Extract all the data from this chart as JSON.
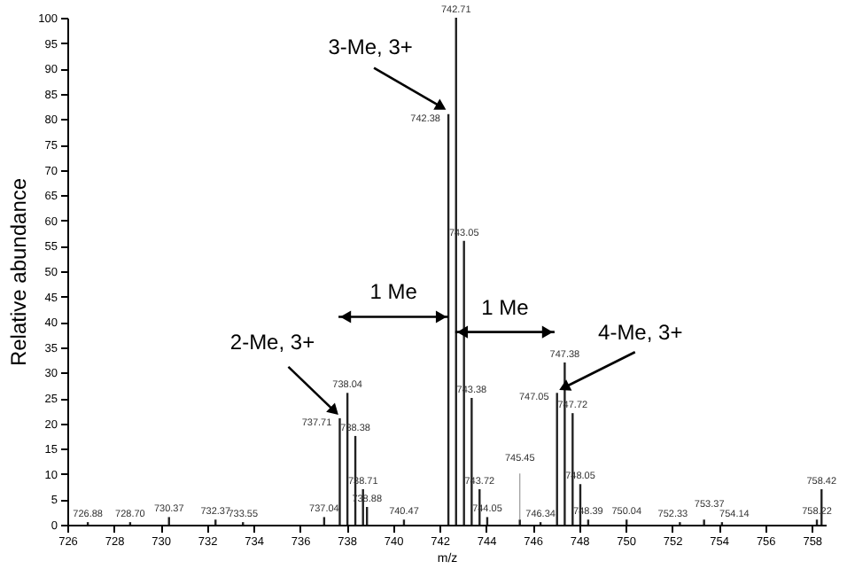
{
  "chart_data": {
    "type": "bar",
    "xlabel": "m/z",
    "ylabel": "Relative abundance",
    "x": [
      726.88,
      728.7,
      730.37,
      732.37,
      733.55,
      737.04,
      737.71,
      738.04,
      738.38,
      738.71,
      738.88,
      740.47,
      742.38,
      742.71,
      743.05,
      743.38,
      743.72,
      744.05,
      745.45,
      746.34,
      747.05,
      747.38,
      747.72,
      748.05,
      748.39,
      750.04,
      752.33,
      753.37,
      754.14,
      758.22,
      758.42
    ],
    "values": [
      0.5,
      0.5,
      1.5,
      1,
      0.5,
      1.5,
      21,
      26,
      17.5,
      7,
      3.5,
      1,
      81,
      100,
      56,
      25,
      7,
      1.5,
      1,
      0.5,
      26,
      32,
      22,
      8,
      1,
      1,
      0.5,
      1,
      0.5,
      1,
      7
    ],
    "color": "#222222",
    "xlim": [
      726,
      758.6
    ],
    "ylim": [
      0,
      100
    ],
    "xticks": [
      726,
      728,
      730,
      732,
      734,
      736,
      738,
      740,
      742,
      744,
      746,
      748,
      750,
      752,
      754,
      756,
      758
    ],
    "yticks": [
      0,
      5,
      10,
      15,
      20,
      25,
      30,
      35,
      40,
      45,
      50,
      55,
      60,
      65,
      70,
      75,
      80,
      85,
      90,
      95,
      100
    ],
    "annotations": [
      {
        "text": "3-Me, 3+",
        "x": 742.38,
        "y": 81
      },
      {
        "text": "2-Me, 3+",
        "x": 737.71,
        "y": 21
      },
      {
        "text": "4-Me, 3+",
        "x": 747.05,
        "y": 26
      },
      "1 Me",
      "1 Me",
      {
        "text": "726.88",
        "x": 726.88,
        "y": 0.5
      },
      {
        "text": "728.70",
        "x": 728.7,
        "y": 0.5
      },
      {
        "text": "730.37",
        "x": 730.37,
        "y": 1.5
      },
      {
        "text": "732.37",
        "x": 732.37,
        "y": 1
      },
      {
        "text": "733.55",
        "x": 733.55,
        "y": 0.5
      },
      {
        "text": "737.04",
        "x": 737.04,
        "y": 1.5
      },
      {
        "text": "737.71",
        "x": 737.71,
        "y": 21
      },
      {
        "text": "738.04",
        "x": 738.04,
        "y": 26
      },
      {
        "text": "738.38",
        "x": 738.38,
        "y": 17.5
      },
      {
        "text": "738.71",
        "x": 738.71,
        "y": 7
      },
      {
        "text": "738.88",
        "x": 738.88,
        "y": 3.5
      },
      {
        "text": "740.47",
        "x": 740.47,
        "y": 1
      },
      {
        "text": "742.38",
        "x": 742.38,
        "y": 81
      },
      {
        "text": "742.71",
        "x": 742.71,
        "y": 100
      },
      {
        "text": "743.05",
        "x": 743.05,
        "y": 56
      },
      {
        "text": "743.38",
        "x": 743.38,
        "y": 25
      },
      {
        "text": "743.72",
        "x": 743.72,
        "y": 7
      },
      {
        "text": "744.05",
        "x": 744.05,
        "y": 1.5
      },
      {
        "text": "745.45",
        "x": 745.45,
        "y": 1
      },
      {
        "text": "746.34",
        "x": 746.34,
        "y": 0.5
      },
      {
        "text": "747.05",
        "x": 747.05,
        "y": 26
      },
      {
        "text": "747.38",
        "x": 747.38,
        "y": 32
      },
      {
        "text": "747.72",
        "x": 747.72,
        "y": 22
      },
      {
        "text": "748.05",
        "x": 748.05,
        "y": 8
      },
      {
        "text": "748.39",
        "x": 748.39,
        "y": 1
      },
      {
        "text": "750.04",
        "x": 750.04,
        "y": 1
      },
      {
        "text": "752.33",
        "x": 752.33,
        "y": 0.5
      },
      {
        "text": "753.37",
        "x": 753.37,
        "y": 1
      },
      {
        "text": "754.14",
        "x": 754.14,
        "y": 0.5
      },
      {
        "text": "758.22",
        "x": 758.22,
        "y": 1
      },
      {
        "text": "758.42",
        "x": 758.42,
        "y": 7
      }
    ]
  }
}
